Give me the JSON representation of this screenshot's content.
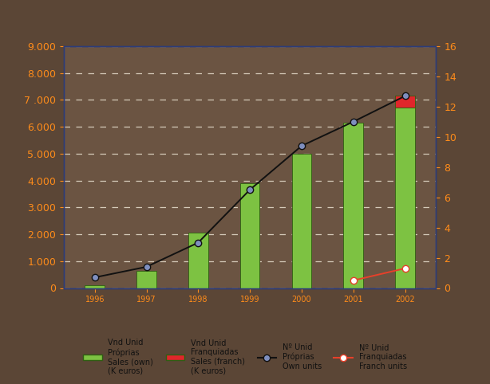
{
  "chart_data": {
    "type": "bar",
    "stacked": true,
    "grid": true,
    "legend": "lower center",
    "categories": [
      "1996",
      "1997",
      "1998",
      "1999",
      "2000",
      "2001",
      "2002"
    ],
    "ylim": [
      0,
      9000
    ],
    "yticks": [
      0,
      {
        "value": 1000,
        "label": "1.000"
      },
      {
        "value": 2000,
        "label": "2.000"
      },
      {
        "value": 3000,
        "label": "3.000"
      },
      {
        "value": 4000,
        "label": "4.000"
      },
      {
        "value": 5000,
        "label": "5.000"
      },
      {
        "value": 6000,
        "label": "6.000"
      },
      {
        "value": 7000,
        "label": "7 .000"
      },
      {
        "value": 8000,
        "label": "8.000"
      },
      {
        "value": 9000,
        "label": "9.000"
      }
    ],
    "y2lim": [
      0,
      16
    ],
    "y2ticks": [
      0,
      2,
      4,
      6,
      8,
      10,
      12,
      14,
      16
    ],
    "series": [
      {
        "name": "Vnd Unid\nPróprias\nSales (own)\n(K euros)",
        "type": "bar",
        "color": "#7dc242",
        "values": [
          100,
          650,
          2050,
          3900,
          5000,
          6150,
          6700
        ]
      },
      {
        "name": "Vnd Unid\nFranquiadas\nSales (franch)\n(K euros)",
        "type": "bar",
        "color": "#e0262b",
        "values": [
          null,
          null,
          null,
          null,
          null,
          null,
          450
        ]
      },
      {
        "name": "Nº Unid\nPróprias\nOwn units",
        "type": "line",
        "axis": "y2",
        "color": "#111111",
        "marker": "o",
        "values": [
          0.7,
          1.4,
          3,
          6.5,
          9.4,
          11,
          12.7
        ]
      },
      {
        "name": "Nº Unid\nFranquiadas\nFranch units",
        "type": "line",
        "axis": "y2",
        "color": "#e8402a",
        "marker": "o",
        "values": [
          null,
          null,
          null,
          null,
          null,
          0.5,
          1.3
        ]
      }
    ]
  }
}
